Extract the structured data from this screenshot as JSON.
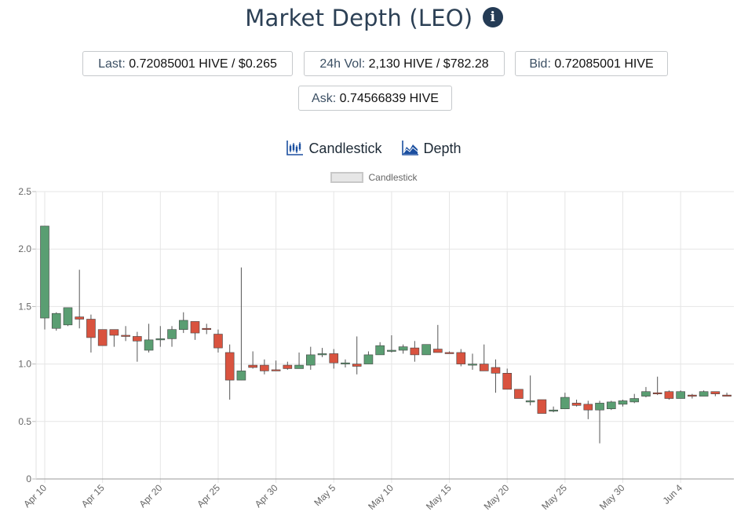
{
  "header": {
    "title": "Market Depth (LEO)",
    "info_icon": "info-icon"
  },
  "stats": {
    "last_label": "Last:",
    "last_value": "0.72085001 HIVE / $0.265",
    "vol_label": "24h Vol:",
    "vol_value": "2,130 HIVE / $782.28",
    "bid_label": "Bid:",
    "bid_value": "0.72085001 HIVE",
    "ask_label": "Ask:",
    "ask_value": "0.74566839 HIVE"
  },
  "tabs": {
    "candlestick_label": "Candlestick",
    "depth_label": "Depth"
  },
  "colors": {
    "up": "#5a9e72",
    "down": "#d9533f",
    "wick": "#555555",
    "grid": "#e5e5e5",
    "title": "#2c4055"
  },
  "chart_data": {
    "type": "candlestick",
    "legend": "Candlestick",
    "legend_position": "top",
    "grid": true,
    "ylim": [
      0,
      2.5
    ],
    "y_ticks": [
      "0",
      "0.5",
      "1.0",
      "1.5",
      "2.0",
      "2.5"
    ],
    "x_ticks": [
      "Apr 10",
      "Apr 15",
      "Apr 20",
      "Apr 25",
      "Apr 30",
      "May 5",
      "May 10",
      "May 15",
      "May 20",
      "May 25",
      "May 30",
      "Jun 4"
    ],
    "candles": [
      {
        "date": "Apr 10",
        "o": 1.4,
        "h": 2.2,
        "l": 1.3,
        "c": 2.2
      },
      {
        "date": "Apr 11",
        "o": 1.31,
        "h": 1.45,
        "l": 1.29,
        "c": 1.44
      },
      {
        "date": "Apr 12",
        "o": 1.34,
        "h": 1.49,
        "l": 1.33,
        "c": 1.49
      },
      {
        "date": "Apr 13",
        "o": 1.41,
        "h": 1.82,
        "l": 1.31,
        "c": 1.39
      },
      {
        "date": "Apr 14",
        "o": 1.39,
        "h": 1.43,
        "l": 1.1,
        "c": 1.23
      },
      {
        "date": "Apr 15",
        "o": 1.3,
        "h": 1.3,
        "l": 1.16,
        "c": 1.16
      },
      {
        "date": "Apr 16",
        "o": 1.3,
        "h": 1.3,
        "l": 1.15,
        "c": 1.25
      },
      {
        "date": "Apr 17",
        "o": 1.25,
        "h": 1.33,
        "l": 1.2,
        "c": 1.24
      },
      {
        "date": "Apr 18",
        "o": 1.24,
        "h": 1.28,
        "l": 1.02,
        "c": 1.2
      },
      {
        "date": "Apr 19",
        "o": 1.12,
        "h": 1.35,
        "l": 1.1,
        "c": 1.21
      },
      {
        "date": "Apr 20",
        "o": 1.22,
        "h": 1.33,
        "l": 1.15,
        "c": 1.22
      },
      {
        "date": "Apr 21",
        "o": 1.22,
        "h": 1.33,
        "l": 1.15,
        "c": 1.3
      },
      {
        "date": "Apr 22",
        "o": 1.3,
        "h": 1.45,
        "l": 1.27,
        "c": 1.38
      },
      {
        "date": "Apr 23",
        "o": 1.37,
        "h": 1.37,
        "l": 1.21,
        "c": 1.27
      },
      {
        "date": "Apr 24",
        "o": 1.31,
        "h": 1.35,
        "l": 1.26,
        "c": 1.3
      },
      {
        "date": "Apr 25",
        "o": 1.26,
        "h": 1.3,
        "l": 1.1,
        "c": 1.14
      },
      {
        "date": "Apr 26",
        "o": 1.1,
        "h": 1.17,
        "l": 0.69,
        "c": 0.86
      },
      {
        "date": "Apr 27",
        "o": 0.86,
        "h": 1.84,
        "l": 0.86,
        "c": 0.94
      },
      {
        "date": "Apr 28",
        "o": 0.99,
        "h": 1.11,
        "l": 0.96,
        "c": 0.97
      },
      {
        "date": "Apr 29",
        "o": 0.99,
        "h": 1.04,
        "l": 0.91,
        "c": 0.94
      },
      {
        "date": "Apr 30",
        "o": 0.95,
        "h": 1.03,
        "l": 0.94,
        "c": 0.94
      },
      {
        "date": "May 1",
        "o": 0.99,
        "h": 1.02,
        "l": 0.95,
        "c": 0.96
      },
      {
        "date": "May 2",
        "o": 0.96,
        "h": 1.1,
        "l": 0.96,
        "c": 0.99
      },
      {
        "date": "May 3",
        "o": 0.99,
        "h": 1.15,
        "l": 0.95,
        "c": 1.08
      },
      {
        "date": "May 4",
        "o": 1.08,
        "h": 1.14,
        "l": 1.06,
        "c": 1.09
      },
      {
        "date": "May 5",
        "o": 1.09,
        "h": 1.13,
        "l": 0.96,
        "c": 1.01
      },
      {
        "date": "May 6",
        "o": 1.01,
        "h": 1.04,
        "l": 0.97,
        "c": 1.01
      },
      {
        "date": "May 7",
        "o": 1.0,
        "h": 1.24,
        "l": 0.91,
        "c": 0.98
      },
      {
        "date": "May 8",
        "o": 1.0,
        "h": 1.11,
        "l": 1.0,
        "c": 1.08
      },
      {
        "date": "May 9",
        "o": 1.08,
        "h": 1.19,
        "l": 1.08,
        "c": 1.16
      },
      {
        "date": "May 10",
        "o": 1.12,
        "h": 1.25,
        "l": 1.1,
        "c": 1.12
      },
      {
        "date": "May 11",
        "o": 1.12,
        "h": 1.17,
        "l": 1.09,
        "c": 1.15
      },
      {
        "date": "May 12",
        "o": 1.14,
        "h": 1.2,
        "l": 1.02,
        "c": 1.08
      },
      {
        "date": "May 13",
        "o": 1.08,
        "h": 1.17,
        "l": 1.08,
        "c": 1.17
      },
      {
        "date": "May 14",
        "o": 1.13,
        "h": 1.34,
        "l": 1.1,
        "c": 1.1
      },
      {
        "date": "May 15",
        "o": 1.1,
        "h": 1.11,
        "l": 1.09,
        "c": 1.09
      },
      {
        "date": "May 16",
        "o": 1.1,
        "h": 1.13,
        "l": 0.98,
        "c": 1.0
      },
      {
        "date": "May 17",
        "o": 1.0,
        "h": 1.09,
        "l": 0.95,
        "c": 1.0
      },
      {
        "date": "May 18",
        "o": 1.0,
        "h": 1.17,
        "l": 0.94,
        "c": 0.94
      },
      {
        "date": "May 19",
        "o": 0.97,
        "h": 1.04,
        "l": 0.75,
        "c": 0.92
      },
      {
        "date": "May 20",
        "o": 0.92,
        "h": 0.96,
        "l": 0.79,
        "c": 0.78
      },
      {
        "date": "May 21",
        "o": 0.78,
        "h": 0.78,
        "l": 0.7,
        "c": 0.7
      },
      {
        "date": "May 22",
        "o": 0.68,
        "h": 0.9,
        "l": 0.64,
        "c": 0.68
      },
      {
        "date": "May 23",
        "o": 0.69,
        "h": 0.69,
        "l": 0.57,
        "c": 0.57
      },
      {
        "date": "May 24",
        "o": 0.59,
        "h": 0.63,
        "l": 0.58,
        "c": 0.6
      },
      {
        "date": "May 25",
        "o": 0.61,
        "h": 0.75,
        "l": 0.61,
        "c": 0.71
      },
      {
        "date": "May 26",
        "o": 0.66,
        "h": 0.69,
        "l": 0.63,
        "c": 0.64
      },
      {
        "date": "May 27",
        "o": 0.65,
        "h": 0.68,
        "l": 0.52,
        "c": 0.6
      },
      {
        "date": "May 28",
        "o": 0.6,
        "h": 0.68,
        "l": 0.31,
        "c": 0.66
      },
      {
        "date": "May 29",
        "o": 0.61,
        "h": 0.68,
        "l": 0.6,
        "c": 0.67
      },
      {
        "date": "May 30",
        "o": 0.65,
        "h": 0.69,
        "l": 0.63,
        "c": 0.68
      },
      {
        "date": "May 31",
        "o": 0.67,
        "h": 0.74,
        "l": 0.66,
        "c": 0.7
      },
      {
        "date": "Jun 1",
        "o": 0.72,
        "h": 0.8,
        "l": 0.71,
        "c": 0.76
      },
      {
        "date": "Jun 2",
        "o": 0.75,
        "h": 0.89,
        "l": 0.73,
        "c": 0.74
      },
      {
        "date": "Jun 3",
        "o": 0.76,
        "h": 0.77,
        "l": 0.69,
        "c": 0.7
      },
      {
        "date": "Jun 4",
        "o": 0.7,
        "h": 0.77,
        "l": 0.7,
        "c": 0.76
      },
      {
        "date": "Jun 5",
        "o": 0.73,
        "h": 0.74,
        "l": 0.7,
        "c": 0.72
      },
      {
        "date": "Jun 6",
        "o": 0.72,
        "h": 0.77,
        "l": 0.72,
        "c": 0.76
      },
      {
        "date": "Jun 7",
        "o": 0.76,
        "h": 0.76,
        "l": 0.72,
        "c": 0.74
      },
      {
        "date": "Jun 8",
        "o": 0.73,
        "h": 0.75,
        "l": 0.72,
        "c": 0.72
      }
    ]
  }
}
